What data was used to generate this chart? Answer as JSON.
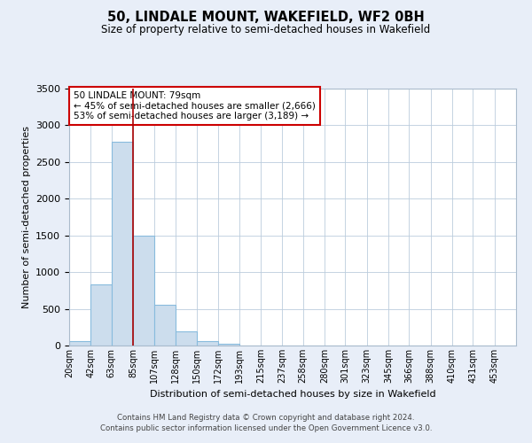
{
  "title": "50, LINDALE MOUNT, WAKEFIELD, WF2 0BH",
  "subtitle": "Size of property relative to semi-detached houses in Wakefield",
  "xlabel": "Distribution of semi-detached houses by size in Wakefield",
  "ylabel": "Number of semi-detached properties",
  "bar_labels": [
    "20sqm",
    "42sqm",
    "63sqm",
    "85sqm",
    "107sqm",
    "128sqm",
    "150sqm",
    "172sqm",
    "193sqm",
    "215sqm",
    "237sqm",
    "258sqm",
    "280sqm",
    "301sqm",
    "323sqm",
    "345sqm",
    "366sqm",
    "388sqm",
    "410sqm",
    "431sqm",
    "453sqm"
  ],
  "bar_values": [
    60,
    830,
    2780,
    1500,
    550,
    190,
    60,
    30,
    0,
    0,
    0,
    0,
    0,
    0,
    0,
    0,
    0,
    0,
    0,
    0,
    0
  ],
  "bar_color": "#ccdded",
  "bar_edgecolor": "#88bbdd",
  "bar_linewidth": 0.8,
  "property_label": "50 LINDALE MOUNT: 79sqm",
  "pct_smaller": 45,
  "pct_smaller_count": 2666,
  "pct_larger": 53,
  "pct_larger_count": 3189,
  "vline_color": "#aa0000",
  "vline_x": 85,
  "bin_edges": [
    20,
    42,
    63,
    85,
    107,
    128,
    150,
    172,
    193,
    215,
    237,
    258,
    280,
    301,
    323,
    345,
    366,
    388,
    410,
    431,
    453
  ],
  "bin_width": 22,
  "ylim": [
    0,
    3500
  ],
  "yticks": [
    0,
    500,
    1000,
    1500,
    2000,
    2500,
    3000,
    3500
  ],
  "bg_color": "#e8eef8",
  "plot_bg_color": "#ffffff",
  "grid_color": "#bbccdd",
  "annotation_box_edgecolor": "#cc0000",
  "footer_line1": "Contains HM Land Registry data © Crown copyright and database right 2024.",
  "footer_line2": "Contains public sector information licensed under the Open Government Licence v3.0."
}
